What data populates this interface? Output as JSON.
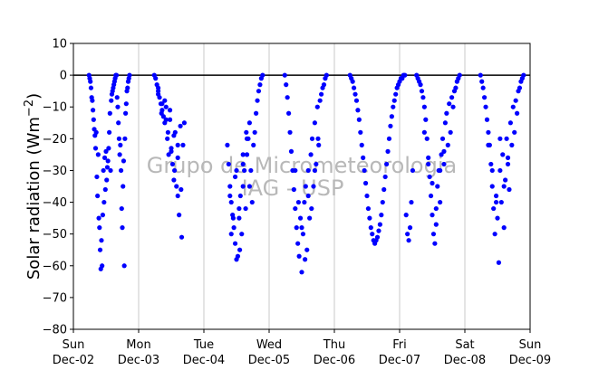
{
  "chart_data": {
    "type": "scatter",
    "ylabel": "Solar radiation (Wm⁻²)",
    "ylabel_text": "Solar radiation",
    "ylabel_unit": "(Wm",
    "ylabel_exp": "−2",
    "ylabel_close": ")",
    "ylim": [
      -80,
      10
    ],
    "xlim_days": [
      0,
      7
    ],
    "yticks": [
      10,
      0,
      -10,
      -20,
      -30,
      -40,
      -50,
      -60,
      -70,
      -80
    ],
    "xticks": [
      {
        "day": 0,
        "weekday": "Sun",
        "date": "Dec-02"
      },
      {
        "day": 1,
        "weekday": "Mon",
        "date": "Dec-03"
      },
      {
        "day": 2,
        "weekday": "Tue",
        "date": "Dec-04"
      },
      {
        "day": 3,
        "weekday": "Wed",
        "date": "Dec-05"
      },
      {
        "day": 4,
        "weekday": "Thu",
        "date": "Dec-06"
      },
      {
        "day": 5,
        "weekday": "Fri",
        "date": "Dec-07"
      },
      {
        "day": 6,
        "weekday": "Sat",
        "date": "Dec-08"
      },
      {
        "day": 7,
        "weekday": "Sun",
        "date": "Dec-09"
      }
    ],
    "reference_line_y": 0,
    "grid": "vertical",
    "marker_color": "#0000ff",
    "watermark": [
      "Grupo de Micrometeorologia",
      "IAG - USP"
    ],
    "series": [
      {
        "x": [
          0.24,
          0.25,
          0.26,
          0.27,
          0.28,
          0.29,
          0.3,
          0.31,
          0.32,
          0.33,
          0.34,
          0.35,
          0.36,
          0.37,
          0.38,
          0.39,
          0.4,
          0.41,
          0.42,
          0.43,
          0.44,
          0.45,
          0.46,
          0.47,
          0.48,
          0.49,
          0.5,
          0.51,
          0.52,
          0.53,
          0.54,
          0.55,
          0.56,
          0.57,
          0.58,
          0.59,
          0.6,
          0.61,
          0.62,
          0.63,
          0.64,
          0.65,
          0.66,
          0.67,
          0.68,
          0.69,
          0.7,
          0.71,
          0.72,
          0.73,
          0.74,
          0.75,
          0.76,
          0.77,
          0.78,
          0.79,
          0.8,
          0.81,
          0.82,
          0.83,
          0.84,
          0.85,
          0.86
        ],
        "y": [
          0,
          -1,
          -2,
          -4,
          -7,
          -8,
          -11,
          -14,
          -17,
          -19,
          -23,
          -18,
          -32,
          -38,
          -25,
          -45,
          -48,
          -55,
          -61,
          -52,
          -60,
          -44,
          -30,
          -40,
          -26,
          -36,
          -24,
          -33,
          -29,
          -27,
          -23,
          -18,
          -12,
          -30,
          -8,
          -6,
          -5,
          -4,
          -3,
          -2,
          -1,
          0,
          0,
          -7,
          -10,
          -15,
          -20,
          -25,
          -22,
          -30,
          -42,
          -48,
          -35,
          -27,
          -60,
          -20,
          -12,
          -9,
          -5,
          -4,
          -2,
          -1,
          0
        ]
      },
      {
        "x": [
          1.24,
          1.26,
          1.28,
          1.3,
          1.32,
          1.34,
          1.36,
          1.38,
          1.4,
          1.42,
          1.44,
          1.46,
          1.48,
          1.5,
          1.52,
          1.54,
          1.56,
          1.58,
          1.6,
          1.62,
          1.64,
          1.66,
          1.68,
          1.7,
          1.3,
          1.35,
          1.4,
          1.45,
          1.5,
          1.55,
          1.6,
          1.65,
          1.3,
          1.36,
          1.42,
          1.48,
          1.54,
          1.6
        ],
        "y": [
          0,
          -1,
          -3,
          -5,
          -7,
          -9,
          -11,
          -13,
          -15,
          -10,
          -20,
          -25,
          -14,
          -23,
          -28,
          -33,
          -18,
          -35,
          -38,
          -44,
          -16,
          -51,
          -22,
          -15,
          -6,
          -12,
          -8,
          -18,
          -24,
          -30,
          -26,
          -36,
          -4,
          -9,
          -14,
          -11,
          -19,
          -22
        ]
      },
      {
        "x": [
          2.36,
          2.38,
          2.4,
          2.42,
          2.44,
          2.46,
          2.48,
          2.5,
          2.52,
          2.54,
          2.56,
          2.58,
          2.6,
          2.62,
          2.64,
          2.66,
          2.68,
          2.7,
          2.72,
          2.74,
          2.76,
          2.78,
          2.8,
          2.82,
          2.84,
          2.86,
          2.88,
          2.9,
          2.4,
          2.45,
          2.5,
          2.55,
          2.6,
          2.65,
          2.42,
          2.48,
          2.54,
          2.6,
          2.66,
          2.7
        ],
        "y": [
          -22,
          -28,
          -35,
          -40,
          -44,
          -48,
          -53,
          -58,
          -57,
          -45,
          -38,
          -50,
          -35,
          -30,
          -42,
          -25,
          -20,
          -15,
          -30,
          -40,
          -22,
          -18,
          -12,
          -8,
          -5,
          -3,
          -1,
          0,
          -38,
          -45,
          -30,
          -55,
          -25,
          -18,
          -50,
          -32,
          -42,
          -28,
          -20,
          -35
        ]
      },
      {
        "x": [
          3.24,
          3.26,
          3.28,
          3.3,
          3.32,
          3.34,
          3.36,
          3.38,
          3.4,
          3.42,
          3.44,
          3.46,
          3.48,
          3.5,
          3.52,
          3.54,
          3.56,
          3.58,
          3.6,
          3.62,
          3.64,
          3.66,
          3.68,
          3.7,
          3.72,
          3.74,
          3.76,
          3.78,
          3.8,
          3.82,
          3.84,
          3.86,
          3.88,
          3.4,
          3.45,
          3.5,
          3.55,
          3.6,
          3.65,
          3.7,
          3.75
        ],
        "y": [
          0,
          -3,
          -7,
          -12,
          -18,
          -24,
          -30,
          -36,
          -42,
          -48,
          -53,
          -57,
          -45,
          -62,
          -50,
          -40,
          -35,
          -55,
          -30,
          -45,
          -25,
          -20,
          -35,
          -15,
          -28,
          -10,
          -22,
          -8,
          -6,
          -4,
          -3,
          -1,
          0,
          -30,
          -40,
          -48,
          -58,
          -38,
          -42,
          -30,
          -20
        ]
      },
      {
        "x": [
          4.24,
          4.26,
          4.28,
          4.3,
          4.32,
          4.34,
          4.36,
          4.38,
          4.4,
          4.42,
          4.44,
          4.46,
          4.48,
          4.5,
          4.52,
          4.54,
          4.56,
          4.58,
          4.6,
          4.62,
          4.64,
          4.66,
          4.68,
          4.7,
          4.72,
          4.74,
          4.76,
          4.78,
          4.8,
          4.82,
          4.84,
          4.86,
          4.88,
          4.9,
          4.92,
          4.94,
          4.96,
          4.98,
          5.0,
          5.02,
          5.04,
          5.06,
          5.08,
          5.1,
          5.12,
          5.14,
          5.16,
          5.18,
          5.2
        ],
        "y": [
          0,
          -1,
          -2,
          -4,
          -6,
          -8,
          -11,
          -14,
          -18,
          -22,
          -26,
          -30,
          -34,
          -38,
          -42,
          -45,
          -48,
          -50,
          -52,
          -53,
          -52,
          -51,
          -49,
          -47,
          -44,
          -40,
          -36,
          -32,
          -28,
          -24,
          -20,
          -16,
          -13,
          -10,
          -8,
          -6,
          -4,
          -3,
          -2,
          -1,
          -1,
          0,
          0,
          -44,
          -50,
          -52,
          -48,
          -40,
          -30
        ]
      },
      {
        "x": [
          5.26,
          5.28,
          5.3,
          5.32,
          5.34,
          5.36,
          5.38,
          5.4,
          5.42,
          5.44,
          5.46,
          5.48,
          5.5,
          5.52,
          5.54,
          5.56,
          5.58,
          5.6,
          5.62,
          5.64,
          5.66,
          5.68,
          5.7,
          5.72,
          5.74,
          5.76,
          5.78,
          5.8,
          5.82,
          5.84,
          5.86,
          5.88,
          5.9,
          5.92,
          5.38,
          5.44,
          5.5,
          5.56,
          5.62,
          5.68
        ],
        "y": [
          0,
          -1,
          -2,
          -3,
          -5,
          -7,
          -10,
          -14,
          -20,
          -26,
          -32,
          -38,
          -44,
          -50,
          -53,
          -47,
          -35,
          -30,
          -40,
          -25,
          -20,
          -28,
          -15,
          -12,
          -22,
          -9,
          -18,
          -7,
          -10,
          -5,
          -4,
          -2,
          -1,
          0,
          -18,
          -28,
          -34,
          -42,
          -30,
          -24
        ]
      },
      {
        "x": [
          6.24,
          6.26,
          6.28,
          6.3,
          6.32,
          6.34,
          6.36,
          6.38,
          6.4,
          6.42,
          6.44,
          6.46,
          6.48,
          6.5,
          6.52,
          6.54,
          6.56,
          6.58,
          6.6,
          6.62,
          6.64,
          6.66,
          6.68,
          6.7,
          6.72,
          6.74,
          6.76,
          6.78,
          6.8,
          6.82,
          6.84,
          6.86,
          6.88,
          6.9,
          6.36,
          6.42,
          6.48,
          6.54,
          6.6,
          6.66
        ],
        "y": [
          0,
          -2,
          -4,
          -7,
          -10,
          -14,
          -18,
          -22,
          -28,
          -35,
          -42,
          -50,
          -38,
          -45,
          -59,
          -30,
          -40,
          -25,
          -48,
          -33,
          -20,
          -28,
          -36,
          -15,
          -22,
          -10,
          -18,
          -8,
          -12,
          -5,
          -4,
          -2,
          -1,
          0,
          -22,
          -30,
          -40,
          -20,
          -35,
          -26
        ]
      }
    ]
  }
}
